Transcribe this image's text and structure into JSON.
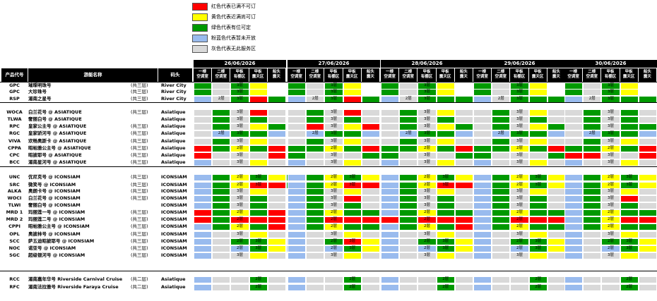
{
  "legend": [
    {
      "label": "红色代表已满不可订",
      "color": "#ff0000"
    },
    {
      "label": "黄色代表近满尚可订",
      "color": "#ffff00"
    },
    {
      "label": "绿色代表有位可定",
      "color": "#009900"
    },
    {
      "label": "粉蓝色代表暂未开放",
      "color": "#99bbee"
    },
    {
      "label": "灰色代表无此服务区",
      "color": "#d9d9d9"
    }
  ],
  "colors": {
    "R": "#ff0000",
    "Y": "#ffff00",
    "G": "#009900",
    "B": "#99bbee",
    "D": "#d9d9d9",
    "W": "#ffffff"
  },
  "headers": {
    "code": "产品代号",
    "name": "游艇名称",
    "pier": "码头"
  },
  "sub_headers": [
    "一楼\n空调室",
    "二楼\n空调室",
    "甲板\n有棚区",
    "甲板\n露天区",
    "船头\n露天"
  ],
  "dates": [
    "26/06/2026",
    "27/06/2026",
    "28/06/2026",
    "29/06/2026",
    "30/06/2026"
  ],
  "floor_labels": {
    "2": "2层",
    "3": "3层"
  },
  "rows": [
    {
      "code": "GPC",
      "name": "璀璨明珠号",
      "floors": "(共三层)",
      "pier": "River City",
      "days": [
        "GDG3Y",
        "GDG3Y",
        "GDG3Y",
        "GDG3Y",
        "GDG3Y"
      ]
    },
    {
      "code": "GPC",
      "name": "大珍珠号",
      "floors": "(共三层)",
      "pier": "River City",
      "days": [
        "GDG3Y",
        "GDG3Y",
        "GDG3Y",
        "GDG3Y",
        "GDG3Y"
      ]
    },
    {
      "code": "RSP",
      "name": "湄南之星号",
      "floors": "(共三层)",
      "pier": "River City",
      "days": [
        "BD2G3RG",
        "BD2G3RG",
        "BD2G3GG",
        "BD2G3GG",
        "BD2G3GG"
      ]
    },
    {
      "code": "WOCA",
      "name": "白兰花号 @ ASIATIQUE",
      "floors": "(共三层)",
      "pier": "Asiatique",
      "days": [
        "DGD3RD",
        "DGD3RD",
        "DGD3YD",
        "DGD3YD",
        "DGD3GD"
      ]
    },
    {
      "code": "TLWA",
      "name": "奢丽白号 @ ASIATIQUE",
      "floors": "",
      "pier": "Asiatique",
      "days": [
        "DGD3GD",
        "DGD3GD",
        "DGD3GD",
        "DGD3GD",
        "DGD3GD"
      ]
    },
    {
      "code": "RPC",
      "name": "皇家公主号 @ ASIATIQUE",
      "floors": "(共三层)",
      "pier": "Asiatique",
      "days": [
        "DGD3YG",
        "DRD3YR",
        "DGD3YG",
        "DGD3YG",
        "DGD3GG"
      ]
    },
    {
      "code": "RGC",
      "name": "皇家骄河号 @ ASIATIQUE",
      "floors": "(共三层)",
      "pier": "Asiatique",
      "days": [
        "DB2G3GB",
        "DB2G3GB",
        "DB2G3GB",
        "DB2G3GB",
        "DB2G3GB"
      ]
    },
    {
      "code": "VIVA",
      "name": "欢畅奥斯卡 @ ASIATIQUE",
      "floors": "(共三层)",
      "pier": "Asiatique",
      "days": [
        "DGD3YD",
        "DGD3YD",
        "DGD3YD",
        "DGD3YD",
        "DGD3YD"
      ]
    },
    {
      "code": "CPPA",
      "name": "昭帕雅公主号 @ ASIATIQUE",
      "floors": "(共三层)",
      "pier": "Asiatique",
      "days": [
        "RGY2GR",
        "GGY2GR",
        "GGY2GR",
        "GGY2GR",
        "GGY2GR"
      ]
    },
    {
      "code": "CPC",
      "name": "昭披耶号 @ ASIATIQUE",
      "floors": "(共三层)",
      "pier": "Asiatique",
      "days": [
        "RDD3DR",
        "GDD3DG",
        "GDD3DG",
        "GDD3DG",
        "RRD3DR"
      ]
    },
    {
      "code": "BCC",
      "name": "湄南星河号 @ ASIATIQUE",
      "floors": "(共三层)",
      "pier": "Asiatique",
      "days": [
        "BDD3YD",
        "BDD3YD",
        "BDD3YD",
        "BDD3YD",
        "BDD3YD"
      ]
    },
    {
      "code": "UNC",
      "name": "优尼克号 @ ICONSIAM",
      "floors": "(共三层)",
      "pier": "ICONSIAM",
      "days": [
        "BGY2G3YG",
        "BGY2G3YG",
        "BGY2G3YG",
        "BGY2G3YG",
        "BGY2G3YG"
      ]
    },
    {
      "code": "SRC",
      "name": "微笑号 @ ICONSIAM",
      "floors": "(共三层)",
      "pier": "ICONSIAM",
      "days": [
        "BGY2R3RG",
        "BGY2R3RG",
        "BGY2R3RG",
        "BGY2G3YG",
        "BGY2G3YG"
      ]
    },
    {
      "code": "ALKA",
      "name": "奥朗卡号 @ ICONSIAM",
      "floors": "(共三层)",
      "pier": "ICONSIAM",
      "days": [
        "BGD3YD",
        "BGD3YD",
        "BGD3YD",
        "BGD3YD",
        "BGD3YD"
      ]
    },
    {
      "code": "WOCI",
      "name": "白兰花号 @ ICONSIAM",
      "floors": "(共三层)",
      "pier": "ICONSIAM",
      "days": [
        "BGD3GD",
        "BGD3RD",
        "BGD3GD",
        "BGD3GD",
        "BGD3RD"
      ]
    },
    {
      "code": "TLWI",
      "name": "奢丽白号 @ ICONSIAM",
      "floors": "",
      "pier": "ICONSIAM",
      "days": [
        "BGD3GD",
        "BGD3GD",
        "BGD3GD",
        "BGD3GD",
        "BGD3GD"
      ]
    },
    {
      "code": "MRD 1",
      "name": "玛丽莲一号 @ ICONSIAM",
      "floors": "(共三层)",
      "pier": "ICONSIAM",
      "days": [
        "RGY2GR",
        "BGY2GG",
        "BGY2GG",
        "BGY2GG",
        "BGY2GG"
      ]
    },
    {
      "code": "MRD 2",
      "name": "玛丽莲二号 @ ICONSIAM",
      "floors": "(共三层)",
      "pier": "ICONSIAM",
      "days": [
        "RGR2RR",
        "BGR2RR",
        "RGR2RR",
        "BGR2RR",
        "BGY2RR"
      ]
    },
    {
      "code": "CPPI",
      "name": "昭帕雅公主号 @ ICONSIAM",
      "floors": "(共三层)",
      "pier": "ICONSIAM",
      "days": [
        "BGY2GR",
        "BGY2GG",
        "BGY2GR",
        "BGY2GG",
        "BGY2GG"
      ]
    },
    {
      "code": "OPL",
      "name": "奥披林号 @ ICONSIAM",
      "floors": "(共三层)",
      "pier": "ICONSIAM",
      "days": [
        "BDD3YD",
        "BDD3YD",
        "BDD3YD",
        "BDD3YD",
        "BDD3YD"
      ]
    },
    {
      "code": "SCC",
      "name": "萨五迪昭披耶号 @ ICONSIAM",
      "floors": "(共三层)",
      "pier": "ICONSIAM",
      "days": [
        "BDG2G3YD",
        "BDG2R3YD",
        "BDG2G3YD",
        "BDG2G3YD",
        "BDG2G3YD"
      ]
    },
    {
      "code": "NOC",
      "name": "诺亚号 @ ICONSIAM",
      "floors": "(共三层)",
      "pier": "ICONSIAM",
      "days": [
        "BDB2G3YB",
        "BDB2G3YB",
        "BDB2G3YB",
        "BDB2G3YB",
        "BDB2G3YB"
      ]
    },
    {
      "code": "SGC",
      "name": "超级银河号 @ ICONSIAM",
      "floors": "(共三层)",
      "pier": "ICONSIAM",
      "days": [
        "BDD3YD",
        "BDD3YD",
        "BDD3YD",
        "BDD3YD",
        "BDD3YD"
      ]
    },
    {
      "code": "RCC",
      "name": "湄南嘉年华号 Riverside Carnival Cruise",
      "floors": "(共二层)",
      "pier": "Asiatique",
      "days": [
        "BDDG2D",
        "BDDG2D",
        "BDDG2D",
        "BDDG2D",
        "BDDG2D"
      ]
    },
    {
      "code": "RFC",
      "name": "湄南法拉雅号 Riverside Faraya Cruise",
      "floors": "(共二层)",
      "pier": "Asiatique",
      "days": [
        "BDDG2D",
        "BDDG2D",
        "BDDG2D",
        "BDDG2D",
        "BDDG2D"
      ]
    }
  ]
}
